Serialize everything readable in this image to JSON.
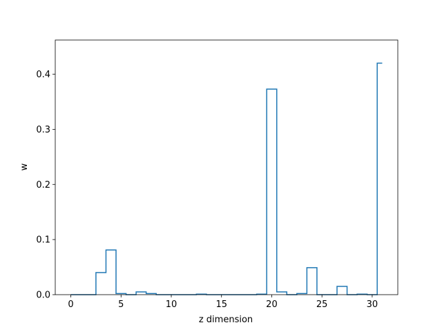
{
  "chart_data": {
    "type": "step",
    "title": "",
    "xlabel": "z dimension",
    "ylabel": "w",
    "xlim": [
      -1.55,
      32.55
    ],
    "ylim": [
      0,
      0.462
    ],
    "xticks": [
      0,
      5,
      10,
      15,
      20,
      25,
      30
    ],
    "yticks": [
      0.0,
      0.1,
      0.2,
      0.3,
      0.4
    ],
    "ytick_labels": [
      "0.0",
      "0.1",
      "0.2",
      "0.3",
      "0.4"
    ],
    "grid": false,
    "legend": "none",
    "step_where": "mid",
    "color": "#1f77b4",
    "x": [
      0,
      1,
      2,
      3,
      4,
      5,
      6,
      7,
      8,
      9,
      10,
      11,
      12,
      13,
      14,
      15,
      16,
      17,
      18,
      19,
      20,
      21,
      22,
      23,
      24,
      25,
      26,
      27,
      28,
      29,
      30,
      31
    ],
    "values": [
      0.0,
      0.0,
      0.0,
      0.04,
      0.081,
      0.002,
      0.0,
      0.005,
      0.002,
      0.0,
      0.0,
      0.0,
      0.0,
      0.001,
      0.0,
      0.0,
      0.0,
      0.0,
      0.0,
      0.001,
      0.373,
      0.005,
      0.0,
      0.002,
      0.049,
      0.0,
      0.0,
      0.015,
      0.0,
      0.001,
      0.0,
      0.42
    ]
  }
}
